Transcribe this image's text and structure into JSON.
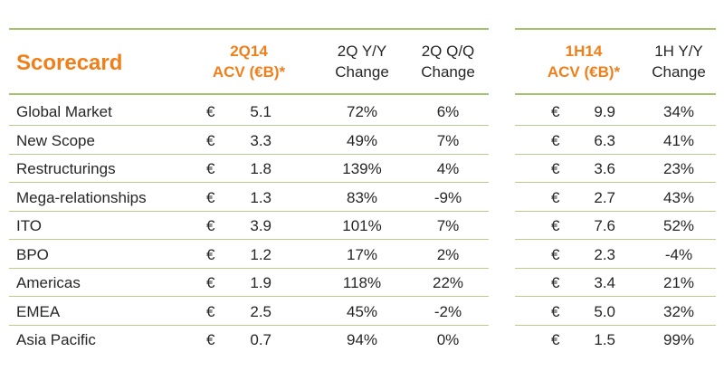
{
  "title": "Scorecard",
  "colors": {
    "accent": "#f07f1a",
    "rule": "#a3c26b",
    "text": "#262626"
  },
  "left_table": {
    "headers": {
      "acv_line1": "2Q14",
      "acv_line2": "ACV (€B)*",
      "yy_line1": "2Q Y/Y",
      "yy_line2": "Change",
      "qq_line1": "2Q Q/Q",
      "qq_line2": "Change"
    }
  },
  "right_table": {
    "headers": {
      "acv_line1": "1H14",
      "acv_line2": "ACV (€B)*",
      "yy_line1": "1H Y/Y",
      "yy_line2": "Change"
    }
  },
  "currency_symbol": "€",
  "rows": [
    {
      "label": "Global Market",
      "acv_2q": "5.1",
      "yy_2q": "72%",
      "qq_2q": "6%",
      "acv_1h": "9.9",
      "yy_1h": "34%"
    },
    {
      "label": "New Scope",
      "acv_2q": "3.3",
      "yy_2q": "49%",
      "qq_2q": "7%",
      "acv_1h": "6.3",
      "yy_1h": "41%"
    },
    {
      "label": "Restructurings",
      "acv_2q": "1.8",
      "yy_2q": "139%",
      "qq_2q": "4%",
      "acv_1h": "3.6",
      "yy_1h": "23%"
    },
    {
      "label": "Mega-relationships",
      "acv_2q": "1.3",
      "yy_2q": "83%",
      "qq_2q": "-9%",
      "acv_1h": "2.7",
      "yy_1h": "43%"
    },
    {
      "label": "ITO",
      "acv_2q": "3.9",
      "yy_2q": "101%",
      "qq_2q": "7%",
      "acv_1h": "7.6",
      "yy_1h": "52%"
    },
    {
      "label": "BPO",
      "acv_2q": "1.2",
      "yy_2q": "17%",
      "qq_2q": "2%",
      "acv_1h": "2.3",
      "yy_1h": "-4%"
    },
    {
      "label": "Americas",
      "acv_2q": "1.9",
      "yy_2q": "118%",
      "qq_2q": "22%",
      "acv_1h": "3.4",
      "yy_1h": "21%"
    },
    {
      "label": "EMEA",
      "acv_2q": "2.5",
      "yy_2q": "45%",
      "qq_2q": "-2%",
      "acv_1h": "5.0",
      "yy_1h": "32%"
    },
    {
      "label": "Asia Pacific",
      "acv_2q": "0.7",
      "yy_2q": "94%",
      "qq_2q": "0%",
      "acv_1h": "1.5",
      "yy_1h": "99%"
    }
  ]
}
